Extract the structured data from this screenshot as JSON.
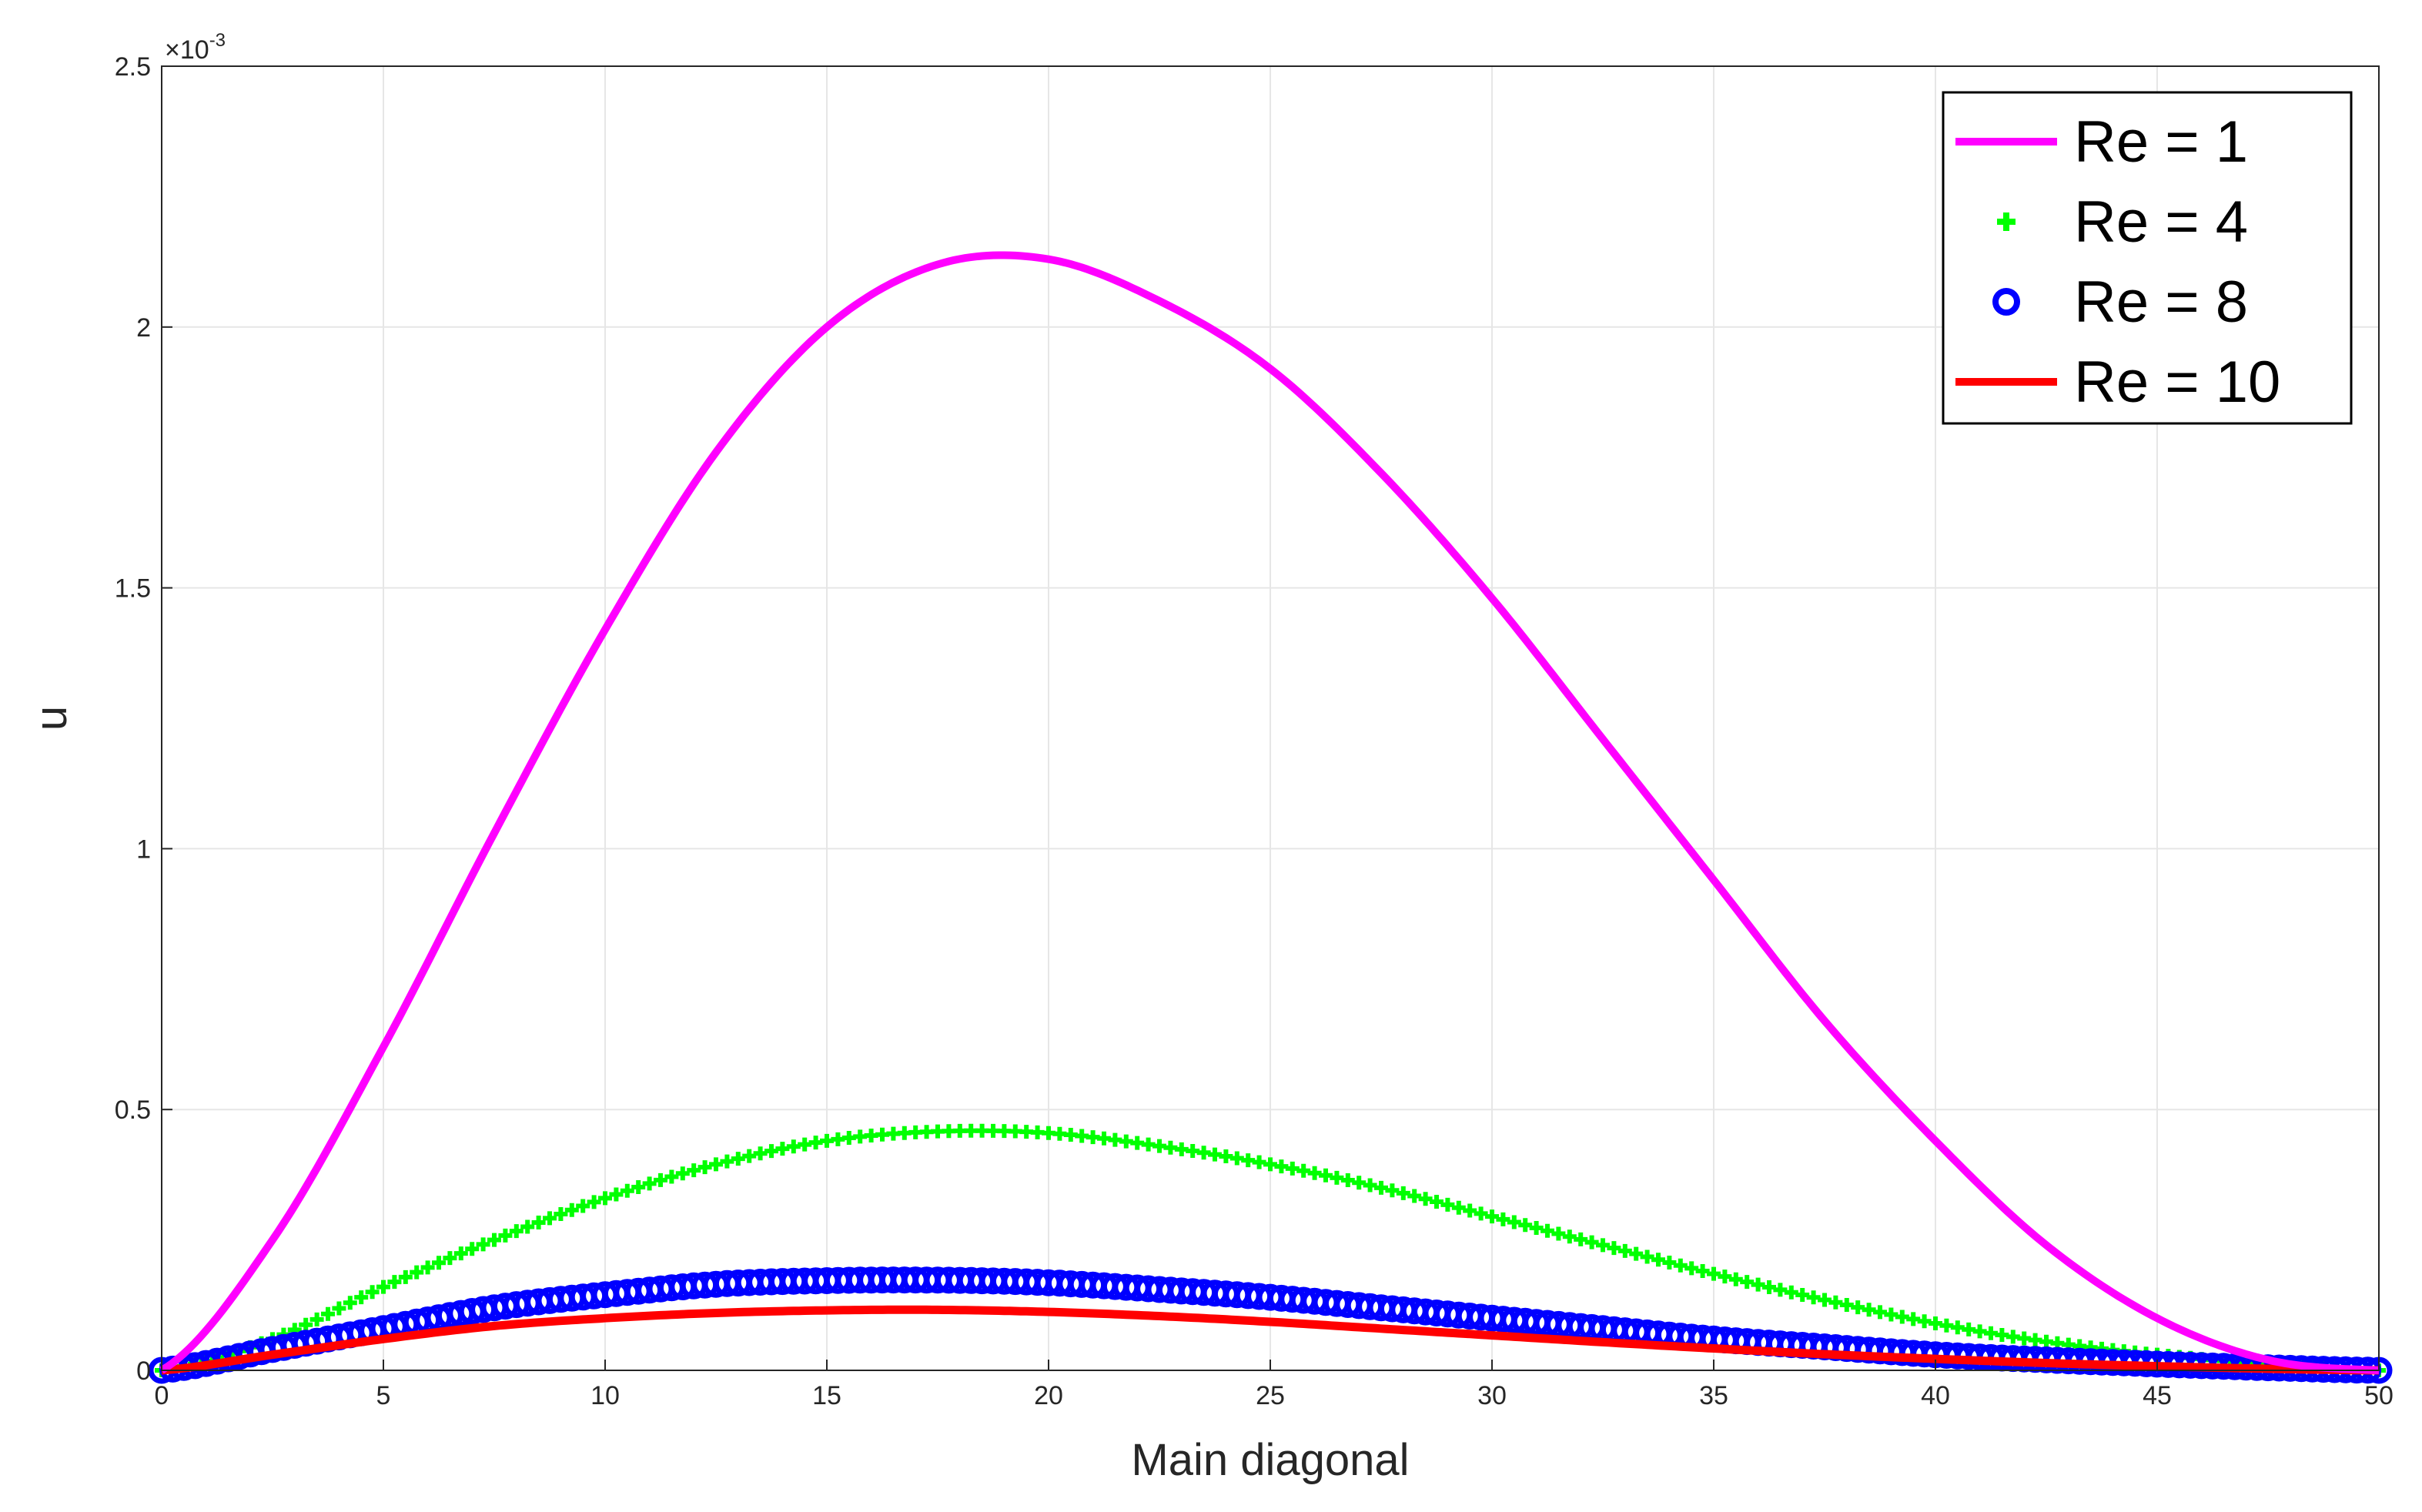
{
  "chart_data": {
    "type": "line",
    "title": "",
    "xlabel": "Main diagonal",
    "ylabel": "u",
    "xlim": [
      0,
      50
    ],
    "ylim": [
      0,
      2.5
    ],
    "y_multiplier_label": "×10",
    "y_multiplier_exponent": "-3",
    "xticks": [
      "0",
      "5",
      "10",
      "15",
      "20",
      "25",
      "30",
      "35",
      "40",
      "45",
      "50"
    ],
    "yticks": [
      "0",
      "0.5",
      "1",
      "1.5",
      "2",
      "2.5"
    ],
    "grid": true,
    "legend_position": "top-right",
    "x": [
      0,
      2.5,
      5,
      7.5,
      10,
      12.5,
      15,
      17.5,
      20,
      22.5,
      25,
      27.5,
      30,
      32.5,
      35,
      37.5,
      40,
      42.5,
      45,
      47.5,
      50
    ],
    "series": [
      {
        "name": "Re = 1",
        "color": "#ff00ff",
        "style": "line",
        "values": [
          0,
          0.25,
          0.62,
          1.03,
          1.42,
          1.76,
          2.0,
          2.12,
          2.13,
          2.05,
          1.92,
          1.72,
          1.48,
          1.21,
          0.94,
          0.67,
          0.44,
          0.24,
          0.1,
          0.02,
          0
        ]
      },
      {
        "name": "Re = 4",
        "color": "#00ff00",
        "style": "plus",
        "values": [
          0,
          0.06,
          0.16,
          0.25,
          0.33,
          0.395,
          0.44,
          0.458,
          0.455,
          0.43,
          0.395,
          0.35,
          0.295,
          0.24,
          0.185,
          0.135,
          0.09,
          0.055,
          0.03,
          0.012,
          0
        ]
      },
      {
        "name": "Re = 8",
        "color": "#0000ff",
        "style": "circle",
        "values": [
          0,
          0.04,
          0.08,
          0.12,
          0.145,
          0.165,
          0.172,
          0.173,
          0.168,
          0.155,
          0.14,
          0.12,
          0.1,
          0.08,
          0.06,
          0.045,
          0.03,
          0.02,
          0.012,
          0.005,
          0
        ]
      },
      {
        "name": "Re = 10",
        "color": "#ff0000",
        "style": "line",
        "values": [
          0,
          0.03,
          0.06,
          0.085,
          0.1,
          0.11,
          0.115,
          0.116,
          0.112,
          0.104,
          0.093,
          0.08,
          0.067,
          0.054,
          0.042,
          0.031,
          0.022,
          0.014,
          0.008,
          0.003,
          0
        ]
      }
    ]
  }
}
